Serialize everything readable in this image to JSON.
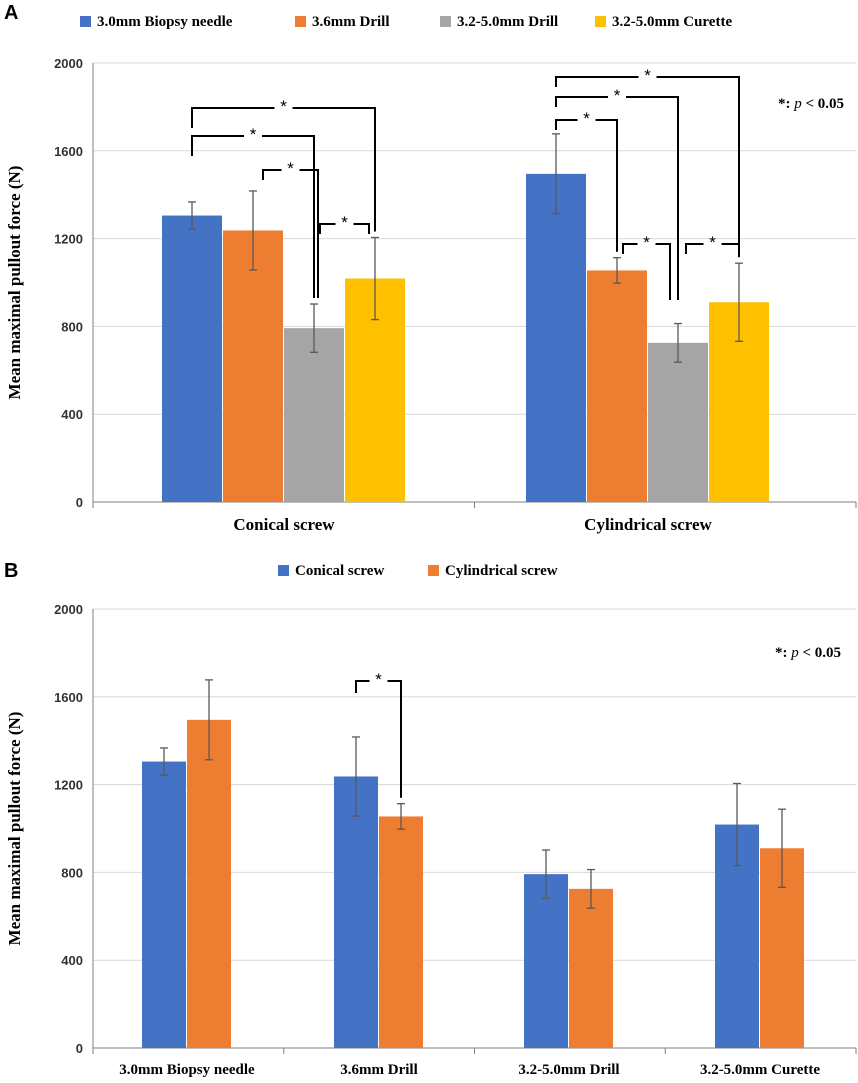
{
  "panels": {
    "a_label": "A",
    "b_label": "B"
  },
  "chart_data": [
    {
      "type": "bar",
      "panel": "A",
      "ylabel": "Mean maximal pullout force (N)",
      "ylim": [
        0,
        2000
      ],
      "yticks": [
        0,
        400,
        800,
        1200,
        1600,
        2000
      ],
      "categories": [
        "Conical screw",
        "Cylindrical screw"
      ],
      "series": [
        {
          "name": "3.0mm Biopsy needle",
          "color": "#4472C4",
          "values": [
            1305,
            1495
          ],
          "errors": [
            62,
            182
          ]
        },
        {
          "name": "3.6mm Drill",
          "color": "#ED7D31",
          "values": [
            1237,
            1055
          ],
          "errors": [
            180,
            58
          ]
        },
        {
          "name": "3.2-5.0mm Drill",
          "color": "#A5A5A5",
          "values": [
            792,
            725
          ],
          "errors": [
            110,
            88
          ]
        },
        {
          "name": "3.2-5.0mm Curette",
          "color": "#FFC000",
          "values": [
            1018,
            910
          ],
          "errors": [
            187,
            178
          ]
        }
      ],
      "significance_pairs": [
        {
          "category": 0,
          "from": 0,
          "to": 3,
          "label": "*"
        },
        {
          "category": 0,
          "from": 0,
          "to": 2,
          "label": "*"
        },
        {
          "category": 0,
          "from": 1,
          "to": 2,
          "label": "*"
        },
        {
          "category": 0,
          "from": 2,
          "to": 3,
          "label": "*"
        },
        {
          "category": 1,
          "from": 0,
          "to": 3,
          "label": "*"
        },
        {
          "category": 1,
          "from": 0,
          "to": 2,
          "label": "*"
        },
        {
          "category": 1,
          "from": 0,
          "to": 1,
          "label": "*"
        },
        {
          "category": 1,
          "from": 1,
          "to": 2,
          "label": "*"
        },
        {
          "category": 1,
          "from": 2,
          "to": 3,
          "label": "*"
        }
      ],
      "note": {
        "star": "*",
        "colon": ": ",
        "p": "p",
        "rest": " < 0.05"
      }
    },
    {
      "type": "bar",
      "panel": "B",
      "ylabel": "Mean maximal pullout force (N)",
      "ylim": [
        0,
        2000
      ],
      "yticks": [
        0,
        400,
        800,
        1200,
        1600,
        2000
      ],
      "categories": [
        "3.0mm Biopsy needle",
        "3.6mm Drill",
        "3.2-5.0mm Drill",
        "3.2-5.0mm Curette"
      ],
      "series": [
        {
          "name": "Conical screw",
          "color": "#4472C4",
          "values": [
            1305,
            1237,
            792,
            1018
          ],
          "errors": [
            62,
            180,
            110,
            187
          ]
        },
        {
          "name": "Cylindrical screw",
          "color": "#ED7D31",
          "values": [
            1495,
            1055,
            725,
            910
          ],
          "errors": [
            182,
            58,
            88,
            178
          ]
        }
      ],
      "significance_pairs": [
        {
          "category": 1,
          "from": 0,
          "to": 1,
          "label": "*"
        }
      ],
      "note": {
        "star": "*",
        "colon": ": ",
        "p": "p",
        "rest": " < 0.05"
      }
    }
  ]
}
